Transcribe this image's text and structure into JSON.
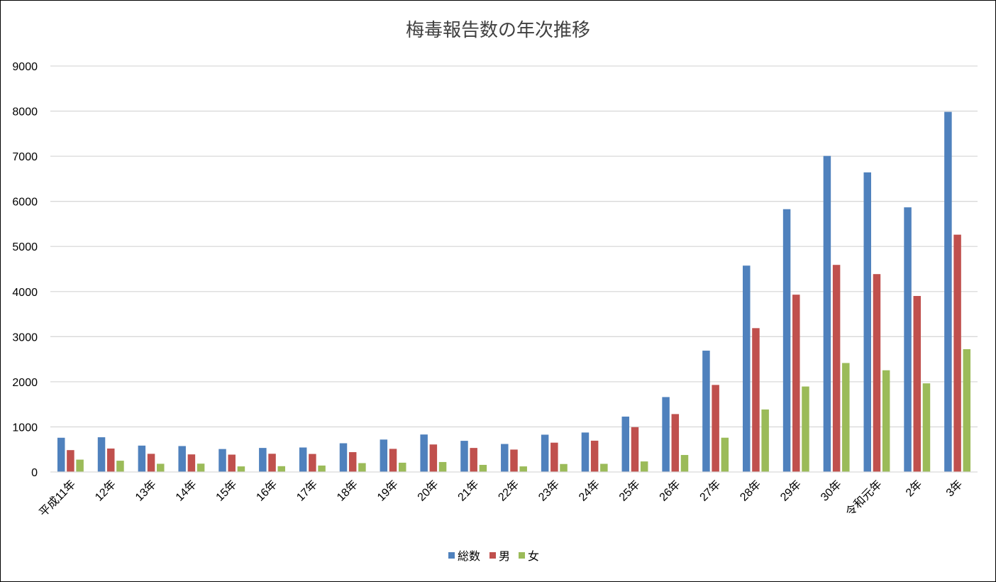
{
  "chart_data": {
    "type": "bar",
    "title": "梅毒報告数の年次推移",
    "xlabel": "",
    "ylabel": "",
    "ylim": [
      0,
      9000
    ],
    "y_ticks": [
      "0",
      "1000",
      "2000",
      "3000",
      "4000",
      "5000",
      "6000",
      "7000",
      "8000",
      "9000"
    ],
    "grid": true,
    "legend_position": "bottom",
    "categories": [
      "平成11年",
      "12年",
      "13年",
      "14年",
      "15年",
      "16年",
      "17年",
      "18年",
      "19年",
      "20年",
      "21年",
      "22年",
      "23年",
      "24年",
      "25年",
      "26年",
      "27年",
      "28年",
      "29年",
      "30年",
      "令和元年",
      "2年",
      "3年"
    ],
    "series": [
      {
        "name": "総数",
        "color": "#4F81BD",
        "values": [
          759,
          770,
          585,
          575,
          509,
          533,
          543,
          637,
          719,
          831,
          691,
          621,
          827,
          875,
          1228,
          1661,
          2690,
          4575,
          5826,
          7007,
          6642,
          5867,
          7983
        ]
      },
      {
        "name": "男",
        "color": "#C0504D",
        "values": [
          485,
          520,
          403,
          390,
          385,
          404,
          400,
          440,
          513,
          610,
          533,
          497,
          650,
          694,
          994,
          1284,
          1930,
          3189,
          3931,
          4591,
          4387,
          3902,
          5261
        ]
      },
      {
        "name": "女",
        "color": "#9BBB59",
        "values": [
          274,
          250,
          182,
          185,
          124,
          129,
          143,
          197,
          206,
          221,
          158,
          124,
          177,
          181,
          234,
          377,
          760,
          1386,
          1895,
          2416,
          2255,
          1965,
          2722
        ]
      }
    ]
  }
}
